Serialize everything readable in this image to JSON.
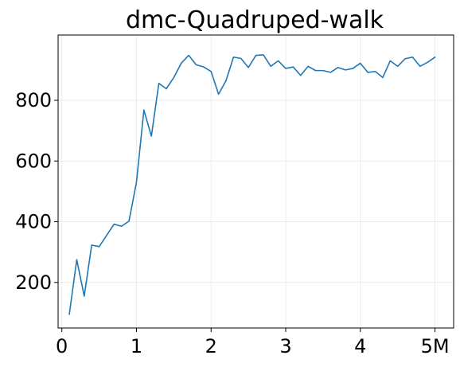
{
  "chart_data": {
    "type": "line",
    "title": "dmc-Quadruped-walk",
    "xlabel": "",
    "ylabel": "",
    "xlim": [
      -0.05,
      5.25
    ],
    "ylim": [
      50,
      1015
    ],
    "grid": true,
    "legend": "none",
    "x_ticks": [
      {
        "value": 0,
        "label": "0"
      },
      {
        "value": 1,
        "label": "1"
      },
      {
        "value": 2,
        "label": "2"
      },
      {
        "value": 3,
        "label": "3"
      },
      {
        "value": 4,
        "label": "4"
      },
      {
        "value": 5,
        "label": "5M"
      }
    ],
    "y_ticks": [
      {
        "value": 200,
        "label": "200"
      },
      {
        "value": 400,
        "label": "400"
      },
      {
        "value": 600,
        "label": "600"
      },
      {
        "value": 800,
        "label": "800"
      }
    ],
    "series": [
      {
        "color": "#1f77b4",
        "x": [
          0.1,
          0.2,
          0.3,
          0.4,
          0.5,
          0.6,
          0.7,
          0.8,
          0.9,
          1.0,
          1.1,
          1.2,
          1.3,
          1.4,
          1.5,
          1.6,
          1.7,
          1.8,
          1.9,
          2.0,
          2.1,
          2.2,
          2.3,
          2.4,
          2.5,
          2.6,
          2.7,
          2.8,
          2.9,
          3.0,
          3.1,
          3.2,
          3.3,
          3.4,
          3.5,
          3.6,
          3.7,
          3.8,
          3.9,
          4.0,
          4.1,
          4.2,
          4.3,
          4.4,
          4.5,
          4.6,
          4.7,
          4.8,
          4.9,
          5.0
        ],
        "y": [
          95,
          275,
          155,
          323,
          318,
          355,
          392,
          385,
          402,
          530,
          768,
          682,
          856,
          838,
          875,
          922,
          948,
          917,
          910,
          895,
          820,
          865,
          942,
          938,
          908,
          948,
          950,
          912,
          930,
          905,
          910,
          882,
          912,
          898,
          898,
          892,
          908,
          900,
          905,
          922,
          892,
          895,
          875,
          930,
          912,
          937,
          942,
          912,
          925,
          942
        ]
      }
    ]
  }
}
